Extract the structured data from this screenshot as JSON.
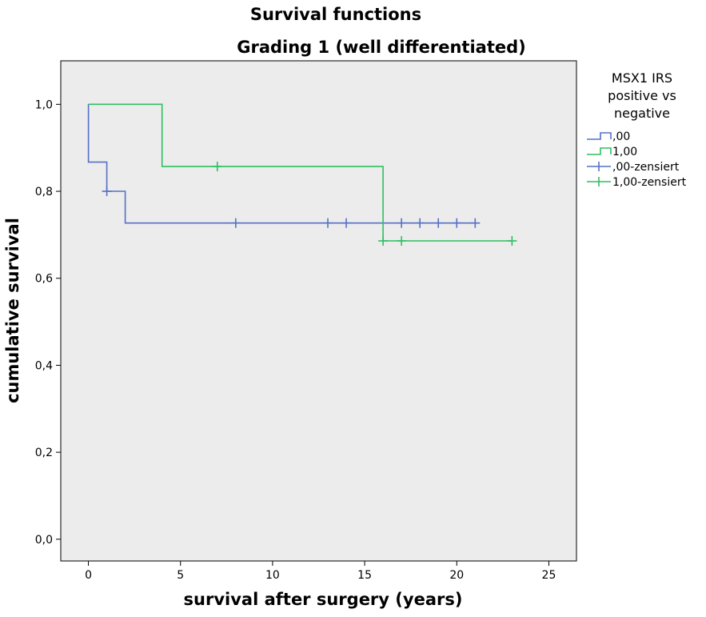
{
  "chart_data": {
    "type": "line",
    "title_lines": [
      "Survival functions",
      "Grading 1 (well differentiated)"
    ],
    "xlabel": "survival after surgery (years)",
    "ylabel": "cumulative survival",
    "xlim": [
      -1.5,
      26.5
    ],
    "ylim": [
      -0.05,
      1.1
    ],
    "x_ticks": [
      0,
      5,
      10,
      15,
      20,
      25
    ],
    "x_tick_labels": [
      "0",
      "5",
      "10",
      "15",
      "20",
      "25"
    ],
    "y_ticks": [
      0.0,
      0.2,
      0.4,
      0.6,
      0.8,
      1.0
    ],
    "y_tick_labels": [
      "0,0",
      "0,2",
      "0,4",
      "0,6",
      "0,8",
      "1,0"
    ],
    "grid": false,
    "background": "#ececec",
    "legend": {
      "title_lines": [
        "MSX1 IRS",
        "positive vs",
        "negative"
      ],
      "placement": "right",
      "entries": [
        {
          "label": ",00",
          "kind": "step",
          "color": "#5470c6"
        },
        {
          "label": "1,00",
          "kind": "step",
          "color": "#2fbf5f"
        },
        {
          "label": ",00-zensiert",
          "kind": "censor",
          "color": "#5470c6"
        },
        {
          "label": "1,00-zensiert",
          "kind": "censor",
          "color": "#2fbf5f"
        }
      ]
    },
    "series": [
      {
        "name": ",00",
        "color": "#5470c6",
        "steps": [
          [
            0,
            1.0
          ],
          [
            0,
            0.867
          ],
          [
            1,
            0.867
          ],
          [
            1,
            0.8
          ],
          [
            2,
            0.8
          ],
          [
            2,
            0.727
          ],
          [
            21,
            0.727
          ]
        ],
        "censored": [
          [
            1,
            0.8
          ],
          [
            8,
            0.727
          ],
          [
            13,
            0.727
          ],
          [
            14,
            0.727
          ],
          [
            17,
            0.727
          ],
          [
            18,
            0.727
          ],
          [
            19,
            0.727
          ],
          [
            20,
            0.727
          ],
          [
            21,
            0.727
          ]
        ]
      },
      {
        "name": "1,00",
        "color": "#2fbf5f",
        "steps": [
          [
            0,
            1.0
          ],
          [
            4,
            1.0
          ],
          [
            4,
            0.857
          ],
          [
            16,
            0.857
          ],
          [
            16,
            0.686
          ],
          [
            23,
            0.686
          ]
        ],
        "censored": [
          [
            7,
            0.857
          ],
          [
            16,
            0.686
          ],
          [
            17,
            0.686
          ],
          [
            23,
            0.686
          ]
        ]
      }
    ]
  }
}
